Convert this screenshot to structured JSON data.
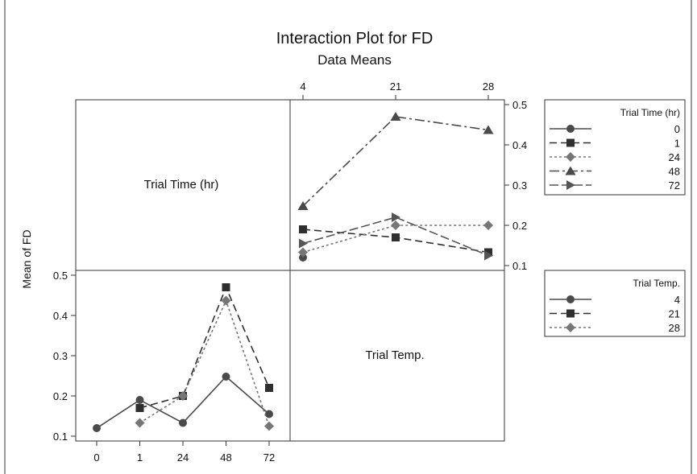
{
  "chart_data": {
    "type": "line",
    "title": "Interaction Plot for FD",
    "subtitle": "Data Means",
    "ylabel": "Mean of FD",
    "ylim": [
      0.1,
      0.5
    ],
    "yticks": [
      "0.1",
      "0.2",
      "0.3",
      "0.4",
      "0.5"
    ],
    "panel_labels": {
      "time": "Trial Time (hr)",
      "temp": "Trial Temp."
    },
    "panels": [
      {
        "name": "by-trial-temp",
        "x_factor": "Trial Temp.",
        "trace_factor": "Trial Time (hr)",
        "categories": [
          "4",
          "21",
          "28"
        ],
        "legend_title": "Trial Time (hr)",
        "series": [
          {
            "name": "0",
            "marker": "circle",
            "dash": "solid",
            "color": "#4a4a4a",
            "values": [
              0.12,
              null,
              null
            ]
          },
          {
            "name": "1",
            "marker": "square",
            "dash": "dash",
            "color": "#2f2f2f",
            "values": [
              0.19,
              0.17,
              0.133
            ]
          },
          {
            "name": "24",
            "marker": "diamond",
            "dash": "dot",
            "color": "#767676",
            "values": [
              0.133,
              0.2,
              0.2
            ]
          },
          {
            "name": "48",
            "marker": "triangle",
            "dash": "dashdot",
            "color": "#4a4a4a",
            "values": [
              0.248,
              0.47,
              0.437
            ]
          },
          {
            "name": "72",
            "marker": "tri-right",
            "dash": "longdash",
            "color": "#555555",
            "values": [
              0.155,
              0.22,
              0.125
            ]
          }
        ]
      },
      {
        "name": "by-trial-time",
        "x_factor": "Trial Time (hr)",
        "trace_factor": "Trial Temp.",
        "categories": [
          "0",
          "1",
          "24",
          "48",
          "72"
        ],
        "legend_title": "Trial Temp.",
        "series": [
          {
            "name": "4",
            "marker": "circle",
            "dash": "solid",
            "color": "#4a4a4a",
            "values": [
              0.12,
              0.19,
              0.133,
              0.248,
              0.155
            ]
          },
          {
            "name": "21",
            "marker": "square",
            "dash": "dash",
            "color": "#2f2f2f",
            "values": [
              null,
              0.17,
              0.2,
              0.47,
              0.22
            ]
          },
          {
            "name": "28",
            "marker": "diamond",
            "dash": "dot",
            "color": "#767676",
            "values": [
              null,
              0.133,
              0.2,
              0.437,
              0.125
            ]
          }
        ]
      }
    ]
  }
}
